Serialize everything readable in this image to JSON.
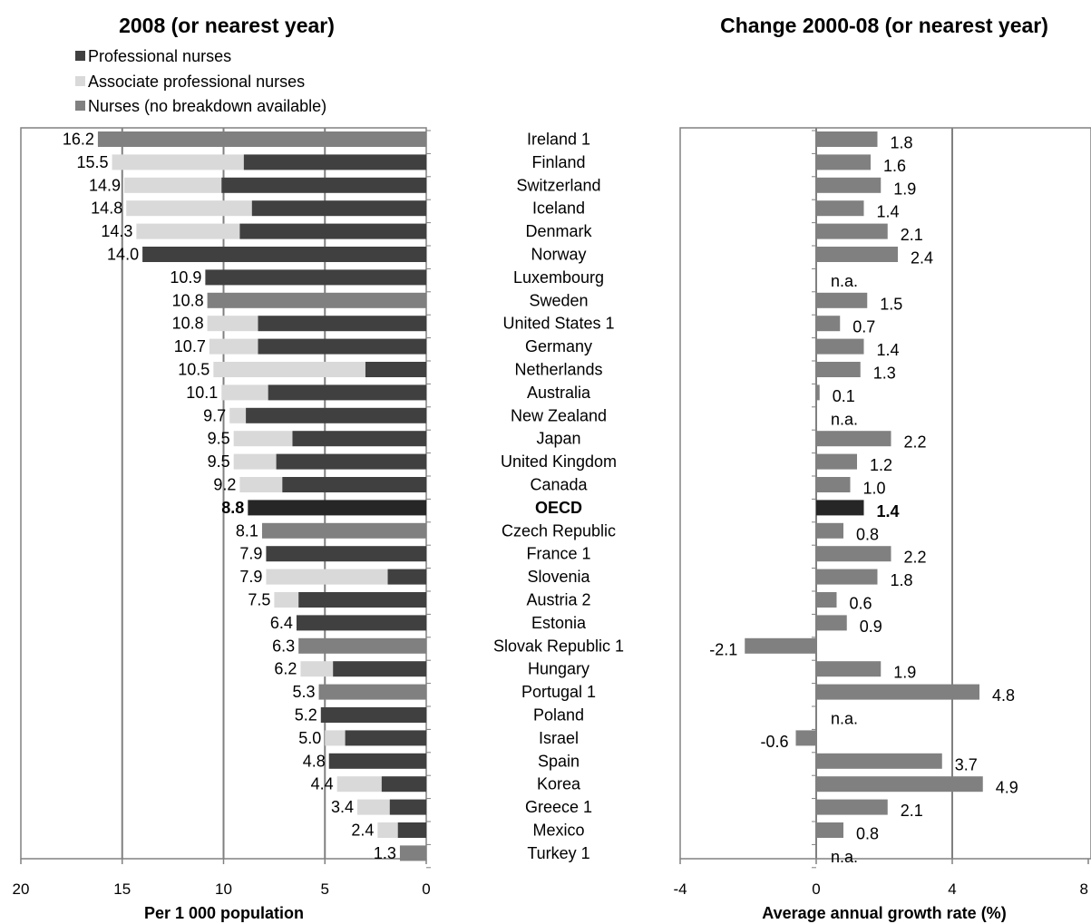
{
  "colors": {
    "professional": "#404040",
    "associate": "#d9d9d9",
    "nurses_total": "#808080",
    "oecd": "#262626",
    "growth": "#808080",
    "growth_oecd": "#262626",
    "grid": "#808080"
  },
  "chart_data": [
    {
      "type": "bar",
      "orientation": "horizontal",
      "stacked": true,
      "title": "2008 (or nearest year)",
      "xlabel": "Per 1 000 population",
      "xlim": [
        20,
        0
      ],
      "x_reversed": true,
      "xticks": [
        "20",
        "15",
        "10",
        "5",
        "0"
      ],
      "grid": "vertical",
      "legend_position": "top-left",
      "legend": [
        "Professional nurses",
        "Associate professional nurses",
        "Nurses (no breakdown available)"
      ],
      "rows": [
        {
          "country": "Ireland 1",
          "total": 16.2,
          "label": "16.2",
          "professional": null
        },
        {
          "country": "Finland",
          "total": 15.5,
          "label": "15.5",
          "professional": 9.0
        },
        {
          "country": "Switzerland",
          "total": 14.9,
          "label": "14.9",
          "professional": 10.1
        },
        {
          "country": "Iceland",
          "total": 14.8,
          "label": "14.8",
          "professional": 8.6
        },
        {
          "country": "Denmark",
          "total": 14.3,
          "label": "14.3",
          "professional": 9.2
        },
        {
          "country": "Norway",
          "total": 14.0,
          "label": "14.0",
          "professional": 14.0
        },
        {
          "country": "Luxembourg",
          "total": 10.9,
          "label": "10.9",
          "professional": 10.9
        },
        {
          "country": "Sweden",
          "total": 10.8,
          "label": "10.8",
          "professional": null
        },
        {
          "country": "United States 1",
          "total": 10.8,
          "label": "10.8",
          "professional": 8.3
        },
        {
          "country": "Germany",
          "total": 10.7,
          "label": "10.7",
          "professional": 8.3
        },
        {
          "country": "Netherlands",
          "total": 10.5,
          "label": "10.5",
          "professional": 3.0
        },
        {
          "country": "Australia",
          "total": 10.1,
          "label": "10.1",
          "professional": 7.8
        },
        {
          "country": "New Zealand",
          "total": 9.7,
          "label": "9.7",
          "professional": 8.9
        },
        {
          "country": "Japan",
          "total": 9.5,
          "label": "9.5",
          "professional": 6.6
        },
        {
          "country": "United Kingdom",
          "total": 9.5,
          "label": "9.5",
          "professional": 7.4
        },
        {
          "country": "Canada",
          "total": 9.2,
          "label": "9.2",
          "professional": 7.1
        },
        {
          "country": "OECD",
          "total": 8.8,
          "label": "8.8",
          "professional": null,
          "highlight": true
        },
        {
          "country": "Czech Republic",
          "total": 8.1,
          "label": "8.1",
          "professional": null
        },
        {
          "country": "France 1",
          "total": 7.9,
          "label": "7.9",
          "professional": 7.9
        },
        {
          "country": "Slovenia",
          "total": 7.9,
          "label": "7.9",
          "professional": 1.9
        },
        {
          "country": "Austria 2",
          "total": 7.5,
          "label": "7.5",
          "professional": 6.3
        },
        {
          "country": "Estonia",
          "total": 6.4,
          "label": "6.4",
          "professional": 6.4
        },
        {
          "country": "Slovak Republic 1",
          "total": 6.3,
          "label": "6.3",
          "professional": null
        },
        {
          "country": "Hungary",
          "total": 6.2,
          "label": "6.2",
          "professional": 4.6
        },
        {
          "country": "Portugal 1",
          "total": 5.3,
          "label": "5.3",
          "professional": null
        },
        {
          "country": "Poland",
          "total": 5.2,
          "label": "5.2",
          "professional": 5.2
        },
        {
          "country": "Israel",
          "total": 5.0,
          "label": "5.0",
          "professional": 4.0
        },
        {
          "country": "Spain",
          "total": 4.8,
          "label": "4.8",
          "professional": 4.8
        },
        {
          "country": "Korea",
          "total": 4.4,
          "label": "4.4",
          "professional": 2.2
        },
        {
          "country": "Greece 1",
          "total": 3.4,
          "label": "3.4",
          "professional": 1.8
        },
        {
          "country": "Mexico",
          "total": 2.4,
          "label": "2.4",
          "professional": 1.4
        },
        {
          "country": "Turkey 1",
          "total": 1.3,
          "label": "1.3",
          "professional": null
        }
      ]
    },
    {
      "type": "bar",
      "orientation": "horizontal",
      "title": "Change 2000-08 (or nearest year)",
      "xlabel": "Average annual growth rate (%)",
      "xlim": [
        -4,
        8
      ],
      "xticks": [
        "-4",
        "0",
        "4",
        "8"
      ],
      "grid": "vertical",
      "rows": [
        {
          "country": "Ireland 1",
          "value": 1.8,
          "label": "1.8"
        },
        {
          "country": "Finland",
          "value": 1.6,
          "label": "1.6"
        },
        {
          "country": "Switzerland",
          "value": 1.9,
          "label": "1.9"
        },
        {
          "country": "Iceland",
          "value": 1.4,
          "label": "1.4"
        },
        {
          "country": "Denmark",
          "value": 2.1,
          "label": "2.1"
        },
        {
          "country": "Norway",
          "value": 2.4,
          "label": "2.4"
        },
        {
          "country": "Luxembourg",
          "value": null,
          "label": "n.a."
        },
        {
          "country": "Sweden",
          "value": 1.5,
          "label": "1.5"
        },
        {
          "country": "United States 1",
          "value": 0.7,
          "label": "0.7"
        },
        {
          "country": "Germany",
          "value": 1.4,
          "label": "1.4"
        },
        {
          "country": "Netherlands",
          "value": 1.3,
          "label": "1.3"
        },
        {
          "country": "Australia",
          "value": 0.1,
          "label": "0.1"
        },
        {
          "country": "New Zealand",
          "value": null,
          "label": "n.a."
        },
        {
          "country": "Japan",
          "value": 2.2,
          "label": "2.2"
        },
        {
          "country": "United Kingdom",
          "value": 1.2,
          "label": "1.2"
        },
        {
          "country": "Canada",
          "value": 1.0,
          "label": "1.0"
        },
        {
          "country": "OECD",
          "value": 1.4,
          "label": "1.4",
          "highlight": true
        },
        {
          "country": "Czech Republic",
          "value": 0.8,
          "label": "0.8"
        },
        {
          "country": "France 1",
          "value": 2.2,
          "label": "2.2"
        },
        {
          "country": "Slovenia",
          "value": 1.8,
          "label": "1.8"
        },
        {
          "country": "Austria 2",
          "value": 0.6,
          "label": "0.6"
        },
        {
          "country": "Estonia",
          "value": 0.9,
          "label": "0.9"
        },
        {
          "country": "Slovak Republic 1",
          "value": -2.1,
          "label": "-2.1"
        },
        {
          "country": "Hungary",
          "value": 1.9,
          "label": "1.9"
        },
        {
          "country": "Portugal 1",
          "value": 4.8,
          "label": "4.8"
        },
        {
          "country": "Poland",
          "value": null,
          "label": "n.a."
        },
        {
          "country": "Israel",
          "value": -0.6,
          "label": "-0.6"
        },
        {
          "country": "Spain",
          "value": 3.7,
          "label": "3.7"
        },
        {
          "country": "Korea",
          "value": 4.9,
          "label": "4.9"
        },
        {
          "country": "Greece 1",
          "value": 2.1,
          "label": "2.1"
        },
        {
          "country": "Mexico",
          "value": 0.8,
          "label": "0.8"
        },
        {
          "country": "Turkey 1",
          "value": null,
          "label": "n.a."
        }
      ]
    }
  ]
}
